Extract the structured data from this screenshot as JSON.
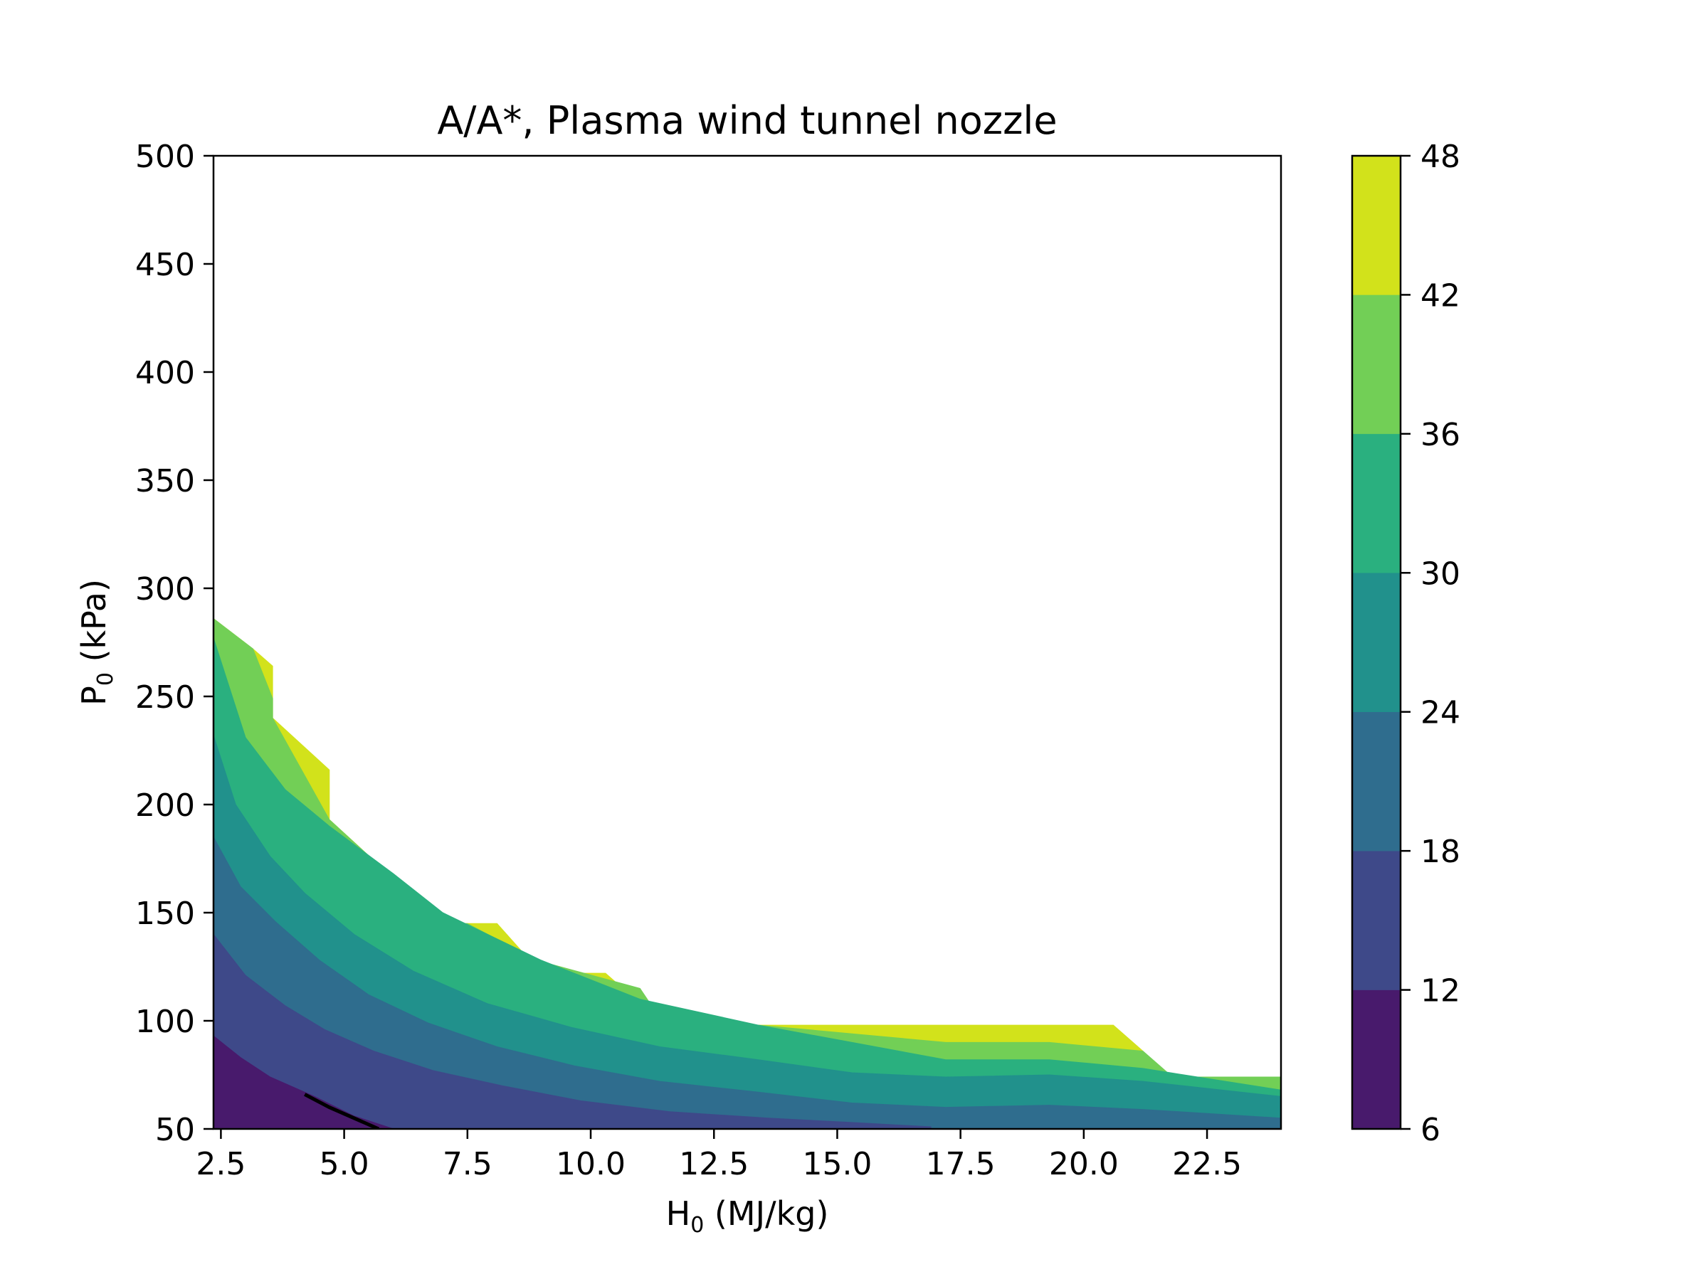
{
  "chart_data": {
    "type": "contourf",
    "title": "A/A*, Plasma wind tunnel nozzle",
    "xlabel": {
      "main": "H",
      "sub": "0",
      "rest": " (MJ/kg)"
    },
    "ylabel": {
      "main": "P",
      "sub": "0",
      "rest": " (kPa)"
    },
    "xlim": [
      2.35,
      24.0
    ],
    "ylim": [
      50,
      500
    ],
    "x_ticks": [
      2.5,
      5.0,
      7.5,
      10.0,
      12.5,
      15.0,
      17.5,
      20.0,
      22.5
    ],
    "x_tick_labels": [
      "2.5",
      "5.0",
      "7.5",
      "10.0",
      "12.5",
      "15.0",
      "17.5",
      "20.0",
      "22.5"
    ],
    "y_ticks": [
      50,
      100,
      150,
      200,
      250,
      300,
      350,
      400,
      450,
      500
    ],
    "y_tick_labels": [
      "50",
      "100",
      "150",
      "200",
      "250",
      "300",
      "350",
      "400",
      "450",
      "500"
    ],
    "colorbar": {
      "levels": [
        6,
        12,
        18,
        24,
        30,
        36,
        42,
        48
      ],
      "tick_labels": [
        "6",
        "12",
        "18",
        "24",
        "30",
        "36",
        "42",
        "48"
      ],
      "colors": [
        "#481a6c",
        "#3e4989",
        "#2f6d8e",
        "#21918c",
        "#2ab07f",
        "#72cf56",
        "#d2e21b"
      ]
    },
    "contour_bands": [
      {
        "range": "42-48",
        "color": "#d2e21b",
        "polygon": [
          [
            2.35,
            286
          ],
          [
            3.15,
            272
          ],
          [
            3.55,
            264
          ],
          [
            3.55,
            240
          ],
          [
            4.7,
            216
          ],
          [
            4.7,
            193
          ],
          [
            7.0,
            145
          ],
          [
            8.1,
            145
          ],
          [
            9.0,
            122
          ],
          [
            10.3,
            122
          ],
          [
            11.5,
            98
          ],
          [
            20.6,
            98
          ],
          [
            21.2,
            86
          ],
          [
            21.2,
            76
          ],
          [
            9.0,
            76
          ],
          [
            2.35,
            76
          ]
        ]
      },
      {
        "range": "36-42",
        "color": "#72cf56",
        "polygon": [
          [
            2.35,
            286
          ],
          [
            3.15,
            272
          ],
          [
            3.55,
            249
          ],
          [
            3.55,
            240
          ],
          [
            4.7,
            193
          ],
          [
            7.0,
            145
          ],
          [
            7.5,
            145
          ],
          [
            8.9,
            128
          ],
          [
            11.0,
            115
          ],
          [
            11.5,
            98
          ],
          [
            13.4,
            98
          ],
          [
            15.3,
            94
          ],
          [
            17.2,
            90
          ],
          [
            19.3,
            90
          ],
          [
            21.2,
            86
          ],
          [
            21.8,
            74
          ],
          [
            24.0,
            74
          ],
          [
            24.0,
            50
          ],
          [
            2.35,
            50
          ]
        ]
      },
      {
        "range": "30-36",
        "color": "#2ab07f",
        "polygon": [
          [
            2.35,
            277
          ],
          [
            3.0,
            231
          ],
          [
            3.8,
            207
          ],
          [
            4.7,
            190
          ],
          [
            6.0,
            168
          ],
          [
            7.0,
            150
          ],
          [
            9.0,
            128
          ],
          [
            11.0,
            110
          ],
          [
            13.4,
            98
          ],
          [
            15.3,
            90
          ],
          [
            17.2,
            82
          ],
          [
            19.3,
            82
          ],
          [
            21.2,
            78
          ],
          [
            24.0,
            68
          ],
          [
            24.0,
            50
          ],
          [
            2.35,
            50
          ]
        ]
      },
      {
        "range": "24-30",
        "color": "#21918c",
        "polygon": [
          [
            2.35,
            232
          ],
          [
            2.8,
            200
          ],
          [
            3.5,
            176
          ],
          [
            4.2,
            159
          ],
          [
            5.2,
            140
          ],
          [
            6.4,
            123
          ],
          [
            7.9,
            108
          ],
          [
            9.6,
            97
          ],
          [
            11.4,
            88
          ],
          [
            13.4,
            82
          ],
          [
            15.3,
            76
          ],
          [
            17.2,
            74
          ],
          [
            19.3,
            75
          ],
          [
            21.2,
            72
          ],
          [
            24.0,
            65
          ],
          [
            24.0,
            50
          ],
          [
            2.35,
            50
          ]
        ]
      },
      {
        "range": "18-24",
        "color": "#2f6d8e",
        "polygon": [
          [
            2.35,
            185
          ],
          [
            2.9,
            162
          ],
          [
            3.6,
            146
          ],
          [
            4.5,
            128
          ],
          [
            5.5,
            112
          ],
          [
            6.7,
            99
          ],
          [
            8.1,
            88
          ],
          [
            9.7,
            79
          ],
          [
            11.4,
            72
          ],
          [
            13.4,
            67
          ],
          [
            15.3,
            62
          ],
          [
            17.2,
            60
          ],
          [
            19.3,
            61
          ],
          [
            21.2,
            59
          ],
          [
            24.0,
            55
          ],
          [
            24.0,
            50
          ],
          [
            2.35,
            50
          ]
        ]
      },
      {
        "range": "12-18",
        "color": "#3e4989",
        "polygon": [
          [
            2.35,
            140
          ],
          [
            3.0,
            121
          ],
          [
            3.8,
            107
          ],
          [
            4.6,
            96
          ],
          [
            5.6,
            86
          ],
          [
            6.8,
            77
          ],
          [
            8.2,
            70
          ],
          [
            9.8,
            63
          ],
          [
            11.6,
            58
          ],
          [
            13.6,
            55
          ],
          [
            15.3,
            53
          ],
          [
            16.9,
            51
          ],
          [
            16.9,
            50
          ],
          [
            2.35,
            50
          ]
        ]
      },
      {
        "range": "6-12",
        "color": "#481a6c",
        "polygon": [
          [
            2.35,
            93
          ],
          [
            2.9,
            83
          ],
          [
            3.5,
            74
          ],
          [
            4.4,
            65
          ],
          [
            5.2,
            56
          ],
          [
            6.0,
            50
          ],
          [
            2.35,
            50
          ]
        ]
      }
    ],
    "contour_lines": [
      {
        "color": "#000000",
        "points": [
          [
            4.2,
            66
          ],
          [
            4.7,
            60
          ],
          [
            5.7,
            50
          ]
        ]
      }
    ]
  }
}
